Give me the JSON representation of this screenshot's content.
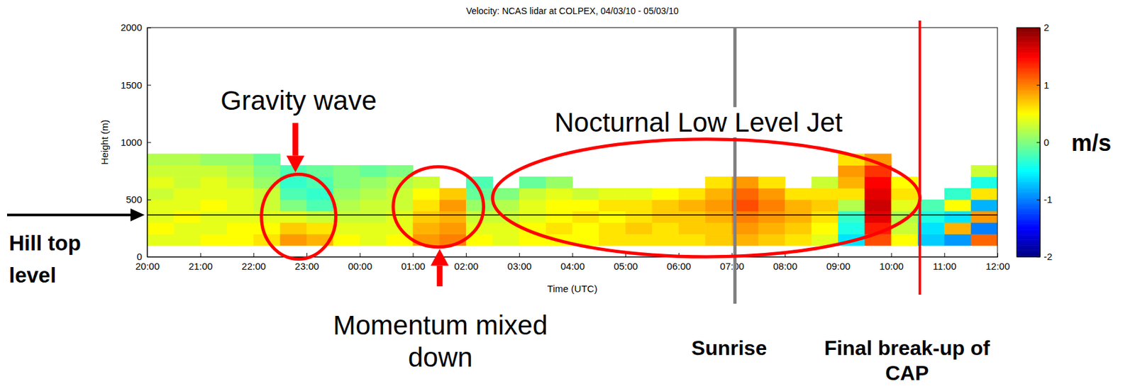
{
  "chart_data": {
    "type": "heatmap",
    "title": "Velocity: NCAS lidar at COLPEX, 04/03/10 - 05/03/10",
    "x_label": "Time (UTC)",
    "y_label": "Height (m)",
    "xlim": [
      20,
      36
    ],
    "xticks": [
      {
        "value": 20,
        "label": "20:00"
      },
      {
        "value": 21,
        "label": "21:00"
      },
      {
        "value": 22,
        "label": "22:00"
      },
      {
        "value": 23,
        "label": "23:00"
      },
      {
        "value": 24,
        "label": "00:00"
      },
      {
        "value": 25,
        "label": "01:00"
      },
      {
        "value": 26,
        "label": "02:00"
      },
      {
        "value": 27,
        "label": "03:00"
      },
      {
        "value": 28,
        "label": "04:00"
      },
      {
        "value": 29,
        "label": "05:00"
      },
      {
        "value": 30,
        "label": "06:00"
      },
      {
        "value": 31,
        "label": "07:00"
      },
      {
        "value": 32,
        "label": "08:00"
      },
      {
        "value": 33,
        "label": "09:00"
      },
      {
        "value": 34,
        "label": "10:00"
      },
      {
        "value": 35,
        "label": "11:00"
      },
      {
        "value": 36,
        "label": "12:00"
      }
    ],
    "ylim": [
      0,
      2000
    ],
    "yticks": [
      0,
      500,
      1000,
      1500,
      2000
    ],
    "grid": false,
    "x_edges": [
      20,
      20.5,
      21,
      21.5,
      22,
      22.5,
      23,
      23.5,
      24,
      24.5,
      25,
      25.5,
      26,
      26.5,
      27,
      27.5,
      28,
      28.5,
      29,
      29.5,
      30,
      30.5,
      31,
      31.5,
      32,
      32.5,
      33,
      33.5,
      34,
      34.5,
      35,
      35.5,
      36
    ],
    "y_edges": [
      100,
      200,
      300,
      400,
      500,
      600,
      700,
      800,
      900
    ],
    "z": [
      [
        0.4,
        0.5,
        0.4,
        0.4,
        0.3,
        0.4,
        0.3,
        0.2
      ],
      [
        0.4,
        0.4,
        0.5,
        0.4,
        0.4,
        0.3,
        0.3,
        0.2
      ],
      [
        0.5,
        0.4,
        0.4,
        0.5,
        0.4,
        0.4,
        0.3,
        0.1
      ],
      [
        0.5,
        0.5,
        0.4,
        0.4,
        0.4,
        0.3,
        0.2,
        0.1
      ],
      [
        0.6,
        0.5,
        0.4,
        0.3,
        0.3,
        0.1,
        0.0,
        -0.1
      ],
      [
        0.9,
        0.7,
        0.4,
        0.0,
        -0.2,
        -0.3,
        -0.2,
        null
      ],
      [
        0.8,
        0.6,
        0.3,
        -0.2,
        -0.3,
        -0.2,
        -0.1,
        null
      ],
      [
        0.5,
        0.4,
        0.3,
        0.2,
        0.1,
        0.0,
        0.0,
        null
      ],
      [
        0.4,
        0.4,
        0.3,
        0.3,
        0.2,
        0.1,
        -0.1,
        null
      ],
      [
        0.5,
        0.4,
        0.4,
        0.3,
        0.3,
        0.2,
        0.0,
        null
      ],
      [
        0.9,
        0.8,
        0.7,
        0.6,
        0.5,
        0.3,
        null,
        null
      ],
      [
        1.0,
        0.9,
        0.8,
        0.9,
        0.7,
        null,
        null,
        null
      ],
      [
        0.5,
        0.4,
        0.3,
        0.1,
        -0.1,
        -0.2,
        null,
        null
      ],
      [
        0.4,
        0.4,
        0.3,
        0.2,
        0.0,
        null,
        null,
        null
      ],
      [
        0.5,
        0.5,
        0.4,
        0.4,
        0.3,
        -0.1,
        null,
        null
      ],
      [
        0.5,
        0.6,
        0.5,
        0.5,
        0.4,
        0.1,
        null,
        null
      ],
      [
        0.5,
        0.5,
        0.6,
        0.5,
        0.3,
        null,
        null,
        null
      ],
      [
        0.6,
        0.6,
        0.5,
        0.6,
        0.4,
        null,
        null,
        null
      ],
      [
        0.6,
        0.7,
        0.6,
        0.6,
        0.4,
        null,
        null,
        null
      ],
      [
        0.6,
        0.6,
        0.7,
        0.7,
        0.5,
        null,
        null,
        null
      ],
      [
        0.6,
        0.7,
        0.7,
        0.8,
        0.6,
        null,
        null,
        null
      ],
      [
        0.7,
        0.7,
        0.8,
        0.9,
        0.8,
        0.6,
        null,
        null
      ],
      [
        0.8,
        0.9,
        1.0,
        1.2,
        1.1,
        0.9,
        null,
        null
      ],
      [
        0.7,
        0.8,
        0.9,
        1.0,
        0.9,
        0.6,
        null,
        null
      ],
      [
        0.6,
        0.7,
        0.8,
        0.8,
        0.6,
        null,
        null,
        null
      ],
      [
        0.4,
        0.5,
        0.6,
        0.7,
        0.6,
        0.3,
        null,
        null
      ],
      [
        -0.6,
        -0.4,
        -0.3,
        0.2,
        0.6,
        0.8,
        0.9,
        0.6
      ],
      [
        1.2,
        1.4,
        1.6,
        1.7,
        1.6,
        1.5,
        1.3,
        0.9
      ],
      [
        0.5,
        0.3,
        0.2,
        0.4,
        0.6,
        0.5,
        null,
        null
      ],
      [
        -0.7,
        -0.6,
        -0.4,
        -0.2,
        null,
        null,
        null,
        null
      ],
      [
        -0.9,
        0.8,
        -0.6,
        0.5,
        -0.3,
        null,
        null,
        null
      ],
      [
        1.1,
        -1.0,
        0.9,
        -0.8,
        0.6,
        -0.4,
        0.3,
        null
      ]
    ],
    "colorbar": {
      "range": [
        -2,
        2
      ],
      "ticks": [
        -2,
        -1,
        0,
        1,
        2
      ],
      "label": "m/s"
    },
    "hill_top": {
      "label": "Hill top level",
      "y": 365
    },
    "annotations": [
      {
        "text": "Gravity wave",
        "x": 22.85,
        "y": 350,
        "rx": 0.7,
        "ry": 370
      },
      {
        "text": "Momentum mixed down",
        "x": 25.48,
        "y": 436,
        "rx": 0.85,
        "ry": 350
      },
      {
        "text": "Nocturnal Low Level Jet",
        "x": 30.52,
        "y": 513,
        "rx": 4.02,
        "ry": 513
      }
    ],
    "markers": [
      {
        "text": "Sunrise",
        "x": 31.06,
        "color": "#808080"
      },
      {
        "text": "Final break-up of CAP",
        "x": 34.54,
        "color": "#ff0000"
      }
    ]
  }
}
